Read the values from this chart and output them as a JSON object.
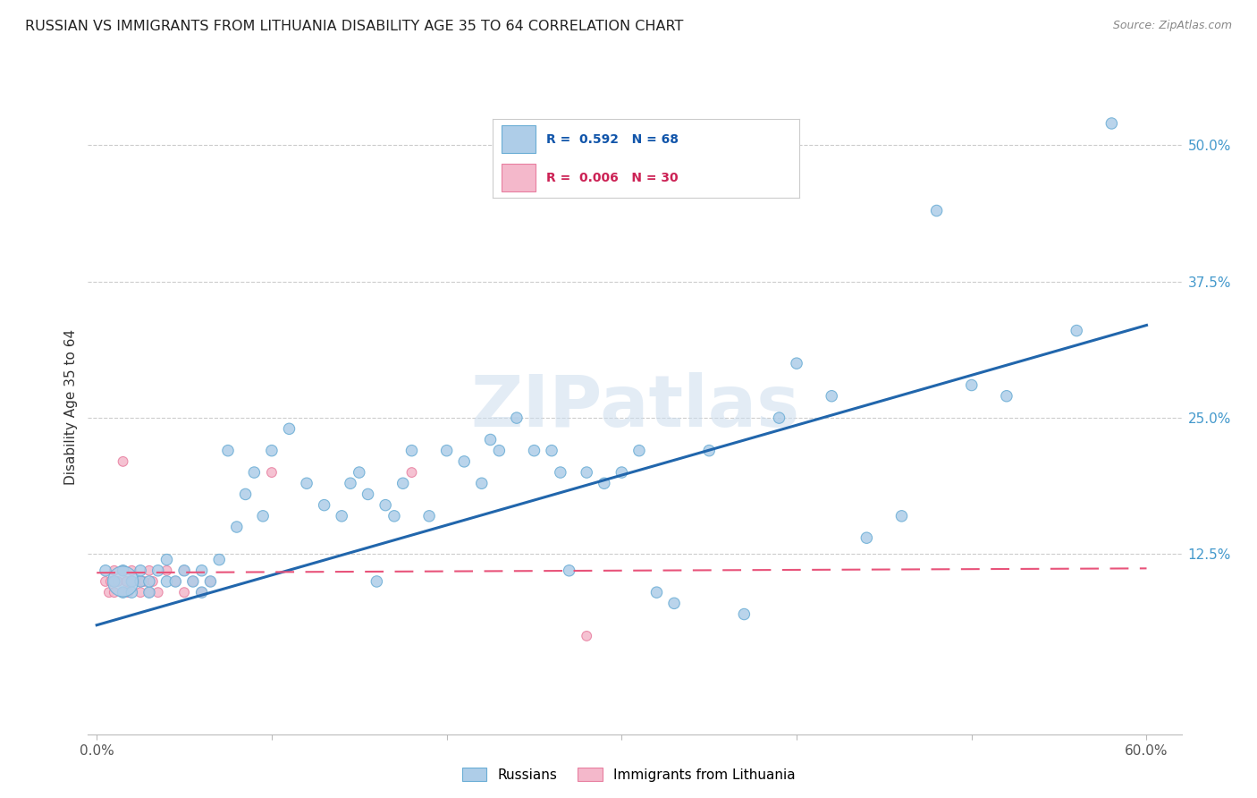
{
  "title": "RUSSIAN VS IMMIGRANTS FROM LITHUANIA DISABILITY AGE 35 TO 64 CORRELATION CHART",
  "source": "Source: ZipAtlas.com",
  "ylabel": "Disability Age 35 to 64",
  "xlim": [
    -0.005,
    0.62
  ],
  "ylim": [
    -0.04,
    0.56
  ],
  "yticks_right": [
    0.125,
    0.25,
    0.375,
    0.5
  ],
  "ytick_labels_right": [
    "12.5%",
    "25.0%",
    "37.5%",
    "50.0%"
  ],
  "blue_color": "#aecde8",
  "blue_edge_color": "#6aadd5",
  "pink_color": "#f4b8cb",
  "pink_edge_color": "#e87fa0",
  "blue_line_color": "#2166ac",
  "pink_line_color": "#e8537a",
  "watermark": "ZIPatlas",
  "russians_x": [
    0.005,
    0.01,
    0.015,
    0.015,
    0.02,
    0.02,
    0.025,
    0.025,
    0.03,
    0.03,
    0.035,
    0.04,
    0.04,
    0.045,
    0.05,
    0.055,
    0.06,
    0.06,
    0.065,
    0.07,
    0.075,
    0.08,
    0.085,
    0.09,
    0.095,
    0.1,
    0.11,
    0.12,
    0.13,
    0.14,
    0.145,
    0.15,
    0.155,
    0.16,
    0.165,
    0.17,
    0.175,
    0.18,
    0.19,
    0.2,
    0.21,
    0.22,
    0.225,
    0.23,
    0.24,
    0.25,
    0.26,
    0.265,
    0.27,
    0.28,
    0.29,
    0.3,
    0.31,
    0.32,
    0.33,
    0.35,
    0.37,
    0.39,
    0.4,
    0.42,
    0.44,
    0.46,
    0.48,
    0.5,
    0.52,
    0.56,
    0.58,
    0.015
  ],
  "russians_y": [
    0.11,
    0.1,
    0.11,
    0.09,
    0.1,
    0.09,
    0.1,
    0.11,
    0.09,
    0.1,
    0.11,
    0.1,
    0.12,
    0.1,
    0.11,
    0.1,
    0.09,
    0.11,
    0.1,
    0.12,
    0.22,
    0.15,
    0.18,
    0.2,
    0.16,
    0.22,
    0.24,
    0.19,
    0.17,
    0.16,
    0.19,
    0.2,
    0.18,
    0.1,
    0.17,
    0.16,
    0.19,
    0.22,
    0.16,
    0.22,
    0.21,
    0.19,
    0.23,
    0.22,
    0.25,
    0.22,
    0.22,
    0.2,
    0.11,
    0.2,
    0.19,
    0.2,
    0.22,
    0.09,
    0.08,
    0.22,
    0.07,
    0.25,
    0.3,
    0.27,
    0.14,
    0.16,
    0.44,
    0.28,
    0.27,
    0.33,
    0.52,
    0.1
  ],
  "russians_size": [
    80,
    80,
    80,
    80,
    80,
    80,
    80,
    80,
    80,
    80,
    80,
    80,
    80,
    80,
    80,
    80,
    80,
    80,
    80,
    80,
    80,
    80,
    80,
    80,
    80,
    80,
    80,
    80,
    80,
    80,
    80,
    80,
    80,
    80,
    80,
    80,
    80,
    80,
    80,
    80,
    80,
    80,
    80,
    80,
    80,
    80,
    80,
    80,
    80,
    80,
    80,
    80,
    80,
    80,
    80,
    80,
    80,
    80,
    80,
    80,
    80,
    80,
    80,
    80,
    80,
    80,
    80,
    600
  ],
  "lithuania_x": [
    0.005,
    0.007,
    0.008,
    0.01,
    0.01,
    0.012,
    0.015,
    0.015,
    0.017,
    0.018,
    0.02,
    0.02,
    0.025,
    0.025,
    0.027,
    0.03,
    0.03,
    0.032,
    0.035,
    0.04,
    0.045,
    0.05,
    0.05,
    0.055,
    0.06,
    0.065,
    0.1,
    0.18,
    0.28,
    0.015
  ],
  "lithuania_y": [
    0.1,
    0.09,
    0.1,
    0.11,
    0.09,
    0.1,
    0.09,
    0.11,
    0.1,
    0.09,
    0.1,
    0.11,
    0.1,
    0.09,
    0.1,
    0.11,
    0.09,
    0.1,
    0.09,
    0.11,
    0.1,
    0.09,
    0.11,
    0.1,
    0.09,
    0.1,
    0.2,
    0.2,
    0.05,
    0.21
  ],
  "lithuania_size": [
    60,
    60,
    60,
    60,
    60,
    60,
    60,
    60,
    60,
    60,
    60,
    60,
    60,
    60,
    60,
    60,
    60,
    60,
    60,
    60,
    60,
    60,
    60,
    60,
    60,
    60,
    60,
    60,
    60,
    60
  ],
  "russia_trendline_x": [
    0.0,
    0.6
  ],
  "russia_trendline_y": [
    0.06,
    0.335
  ],
  "lithuania_trendline_x": [
    0.0,
    0.6
  ],
  "lithuania_trendline_y": [
    0.108,
    0.112
  ],
  "grid_color": "#cccccc",
  "figsize": [
    14.06,
    8.92
  ]
}
